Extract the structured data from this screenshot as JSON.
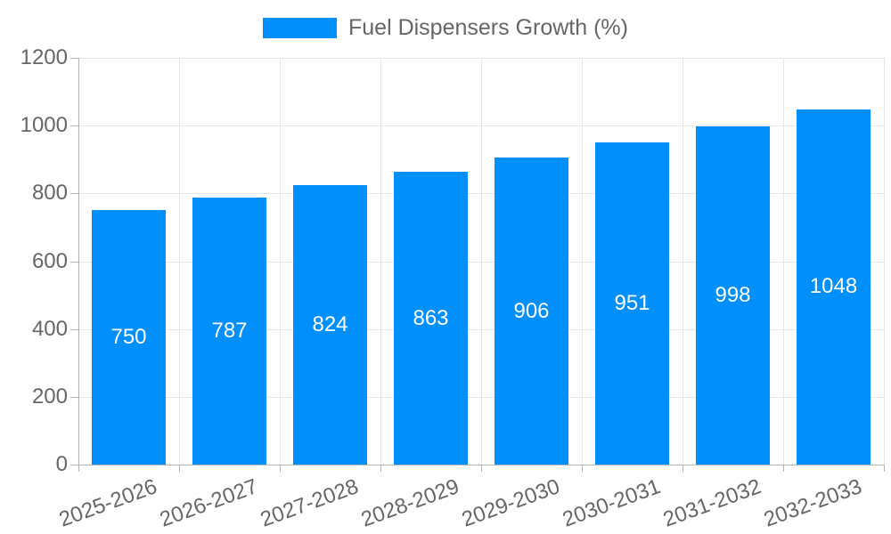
{
  "chart_data": {
    "type": "bar",
    "title": "Fuel Dispensers Growth (%)",
    "legend": {
      "position": "top",
      "entries": [
        {
          "label": "Fuel Dispensers Growth (%)",
          "color": "#008FFB"
        }
      ]
    },
    "categories": [
      "2025-2026",
      "2026-2027",
      "2027-2028",
      "2028-2029",
      "2029-2030",
      "2030-2031",
      "2031-2032",
      "2032-2033"
    ],
    "series": [
      {
        "name": "Fuel Dispensers Growth (%)",
        "values": [
          750,
          787,
          824,
          863,
          906,
          951,
          998,
          1048
        ]
      }
    ],
    "data_labels": [
      "750",
      "787",
      "824",
      "863",
      "906",
      "951",
      "998",
      "1048"
    ],
    "xlabel": "",
    "ylabel": "",
    "ylim": [
      0,
      1200
    ],
    "yticks": [
      "0",
      "200",
      "400",
      "600",
      "800",
      "1000",
      "1200"
    ],
    "grid": "on",
    "colors": {
      "bar": "#008FFB",
      "data_label_text": "#ffffff",
      "axis_text": "#666666",
      "legend_text": "#666666",
      "gridline": "#e6e6e6",
      "axis_line": "#b3b3b3",
      "background": "#ffffff"
    }
  }
}
